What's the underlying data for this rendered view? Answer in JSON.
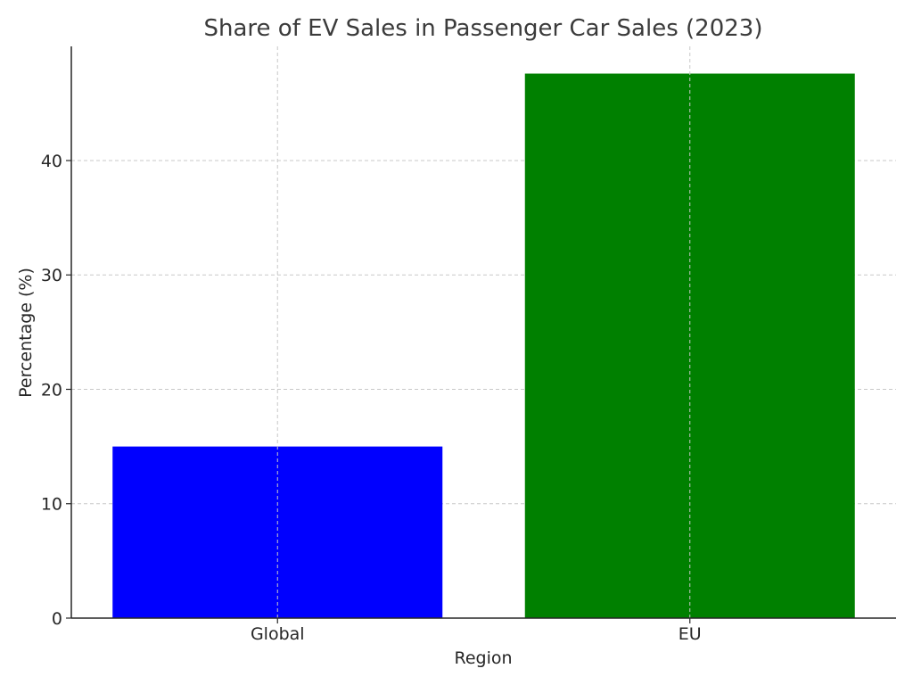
{
  "chart_data": {
    "type": "bar",
    "title": "Share of EV Sales in Passenger Car Sales (2023)",
    "xlabel": "Region",
    "ylabel": "Percentage (%)",
    "categories": [
      "Global",
      "EU"
    ],
    "values": [
      15,
      47.6
    ],
    "colors": [
      "#0000ff",
      "#008000"
    ],
    "ylim": [
      0,
      49.98
    ],
    "yticks": [
      0,
      10,
      20,
      30,
      40
    ],
    "grid": true
  }
}
